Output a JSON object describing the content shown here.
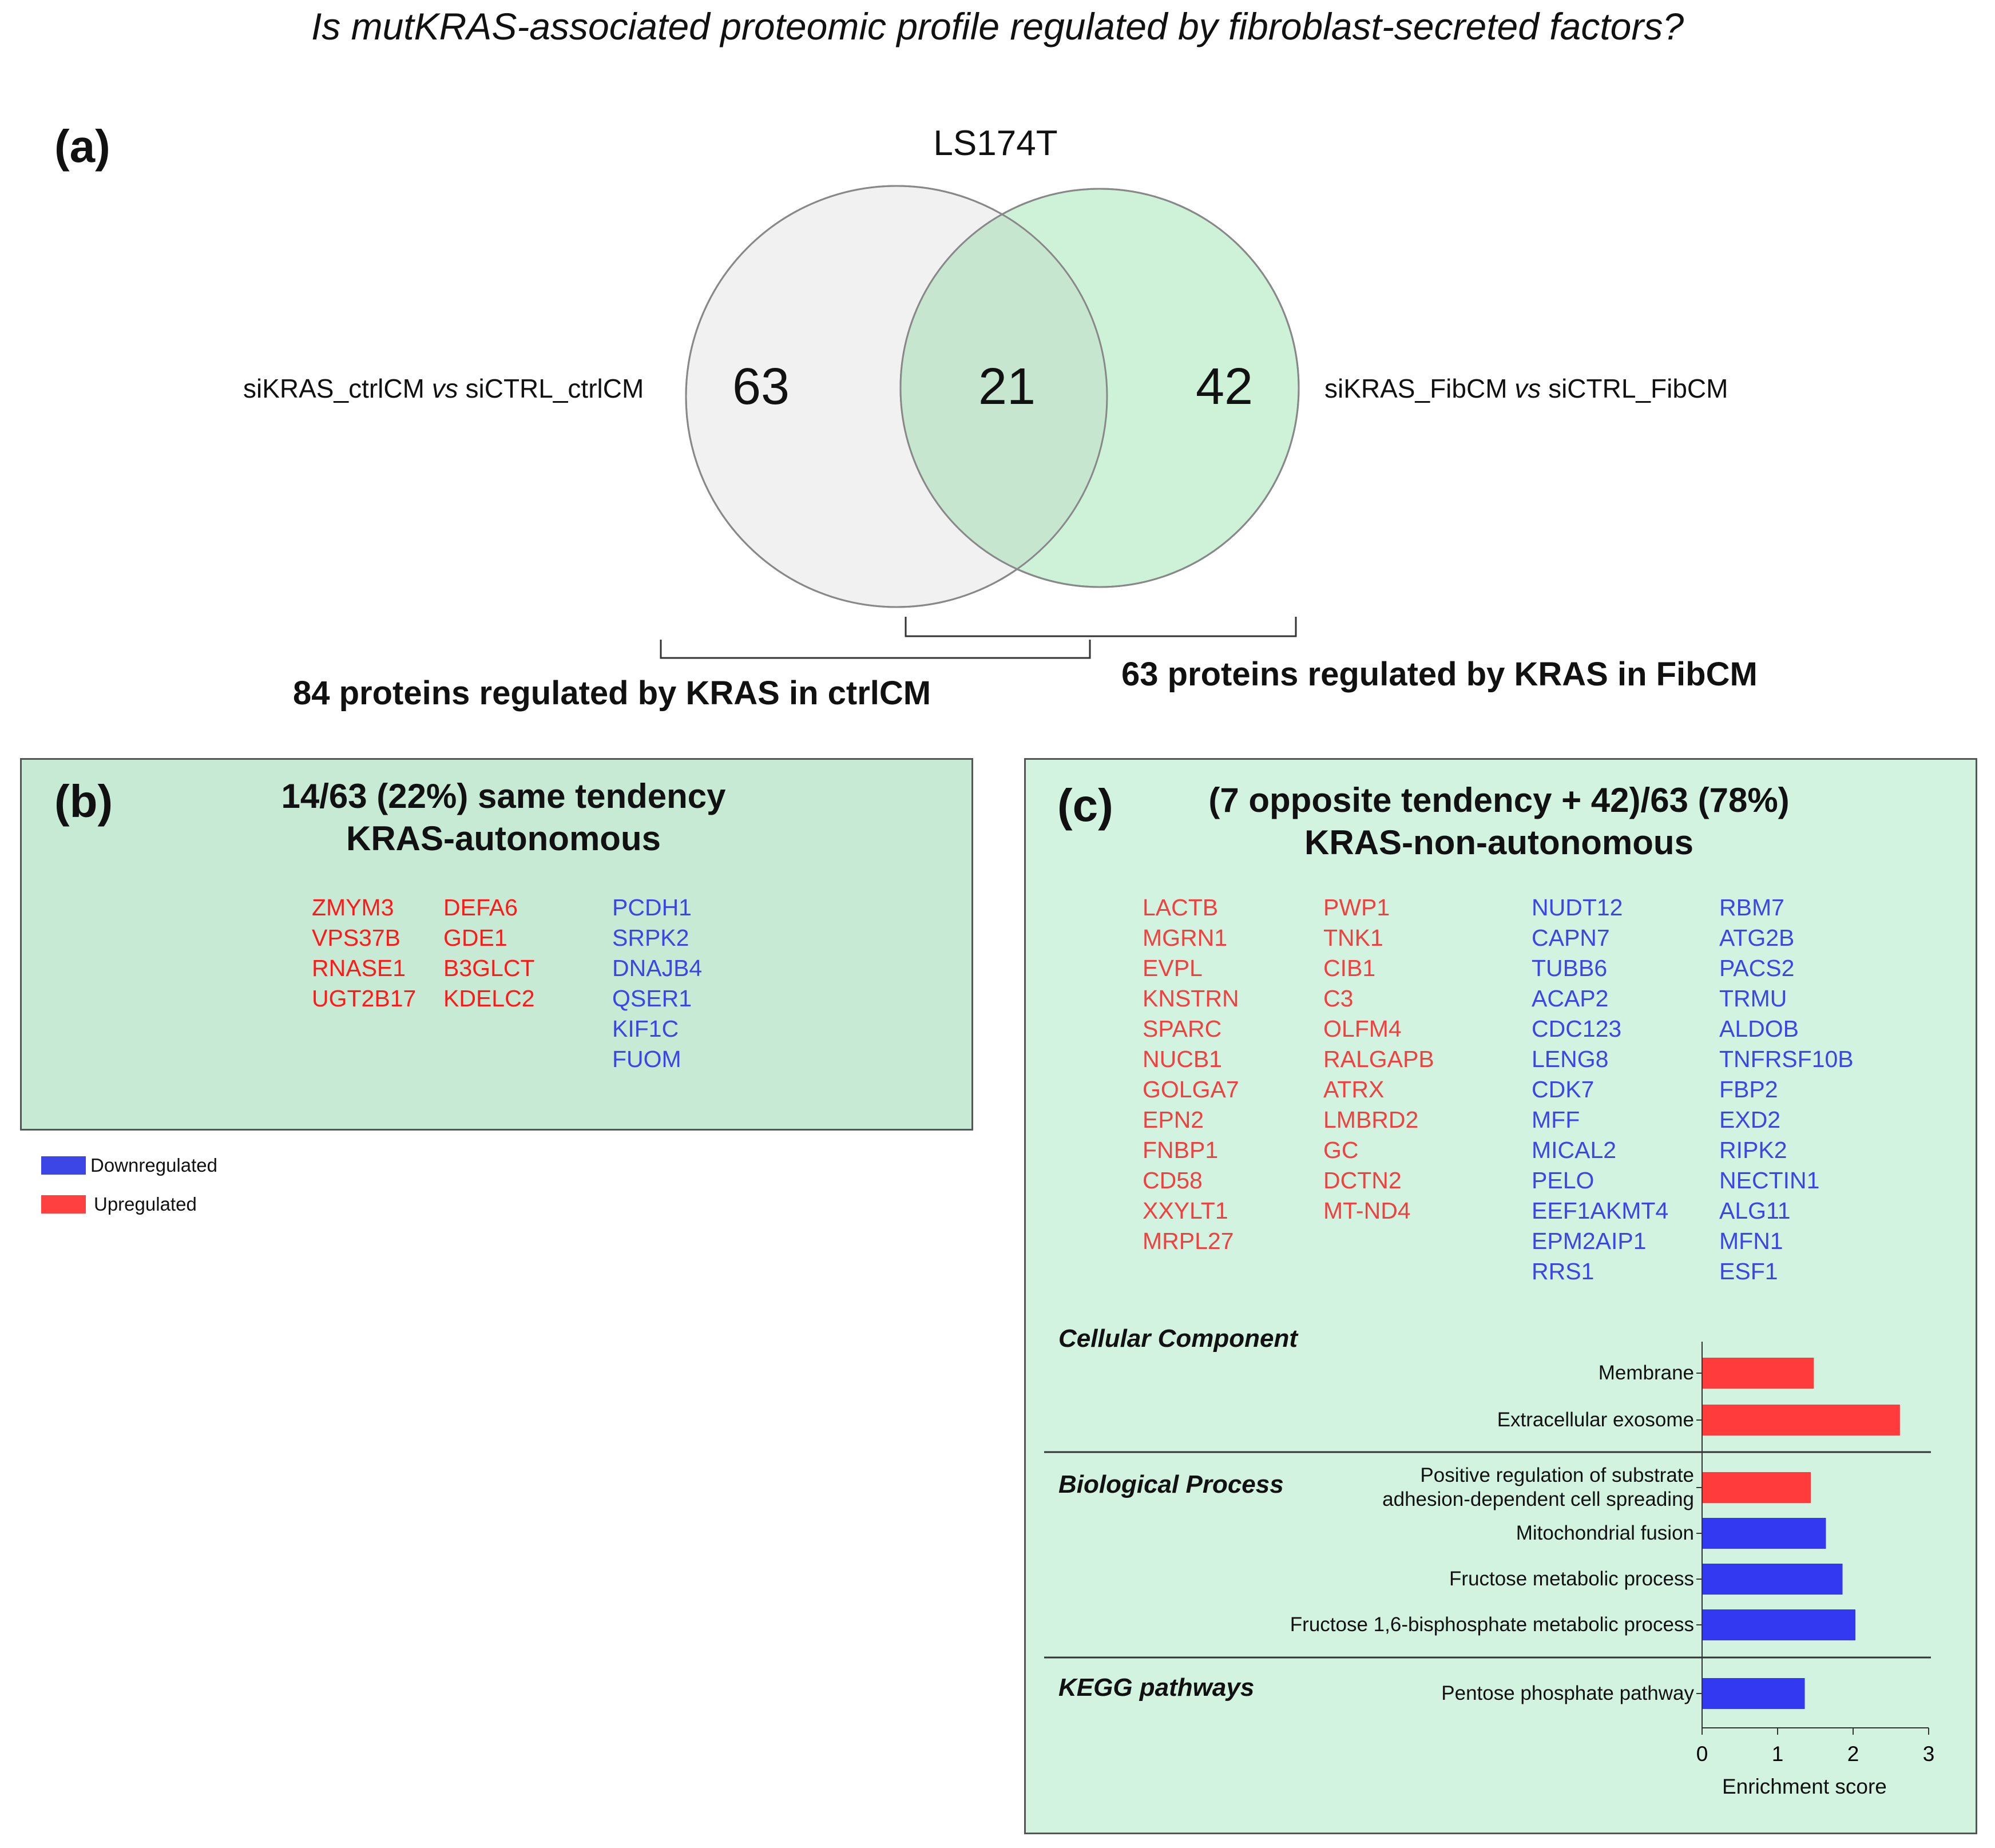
{
  "figure_title": "Is mutKRAS-associated proteomic profile regulated by fibroblast-secreted factors?",
  "panel_a": {
    "label": "(a)",
    "cell_line": "LS174T",
    "left_set_label_pre": "siKRAS_ctrlCM ",
    "left_set_label_vs": "vs",
    "left_set_label_post": " siCTRL_ctrlCM",
    "right_set_label_pre": "siKRAS_FibCM ",
    "right_set_label_vs": "vs",
    "right_set_label_post": " siCTRL_FibCM",
    "left_only": "63",
    "overlap": "21",
    "right_only": "42",
    "left_bracket_label": "84 proteins regulated by KRAS in ctrlCM",
    "right_bracket_label": "63 proteins regulated by KRAS in FibCM",
    "colors": {
      "left_circle": "#f1f1f1",
      "right_circle": "#cdf2d8",
      "overlap": "#c6e6cf"
    }
  },
  "panel_b": {
    "label": "(b)",
    "title_line1": "14/63 (22%)  same tendency",
    "title_line2": "KRAS-autonomous",
    "col1": [
      "ZMYM3",
      "VPS37B",
      "RNASE1",
      "UGT2B17"
    ],
    "col2": [
      "DEFA6",
      "GDE1",
      "B3GLCT",
      "KDELC2"
    ],
    "col3": [
      "PCDH1",
      "SRPK2",
      "DNAJB4",
      "QSER1",
      "KIF1C",
      "FUOM"
    ]
  },
  "legend": {
    "items": [
      {
        "label": "Downregulated",
        "color": "#3c46e6"
      },
      {
        "label": "Upregulated",
        "color": "#ff4040"
      }
    ]
  },
  "panel_c": {
    "label": "(c)",
    "title_line1": "(7 opposite tendency + 42)/63 (78%)",
    "title_line2": "KRAS-non-autonomous",
    "col1": [
      "LACTB",
      "MGRN1",
      "EVPL",
      "KNSTRN",
      "SPARC",
      "NUCB1",
      "GOLGA7",
      "EPN2",
      "FNBP1",
      "CD58",
      "XXYLT1",
      "MRPL27"
    ],
    "col2": [
      "PWP1",
      "TNK1",
      "CIB1",
      "C3",
      "OLFM4",
      "RALGAPB",
      "ATRX",
      "LMBRD2",
      "GC",
      "DCTN2",
      "MT-ND4"
    ],
    "col3": [
      "NUDT12",
      "CAPN7",
      "TUBB6",
      "ACAP2",
      "CDC123",
      "LENG8",
      "CDK7",
      "MFF",
      "MICAL2",
      "PELO",
      "EEF1AKMT4",
      "EPM2AIP1",
      "RRS1"
    ],
    "col4": [
      "RBM7",
      "ATG2B",
      "PACS2",
      "TRMU",
      "ALDOB",
      "TNFRSF10B",
      "FBP2",
      "EXD2",
      "RIPK2",
      "NECTIN1",
      "ALG11",
      "MFN1",
      "ESF1"
    ]
  },
  "chart_data": {
    "type": "bar",
    "orientation": "horizontal",
    "xlabel": "Enrichment score",
    "xlim": [
      0,
      3
    ],
    "xticks": [
      "0",
      "1",
      "2",
      "3"
    ],
    "groups": [
      {
        "name": "Cellular Component",
        "bars": [
          {
            "label": "Membrane",
            "value": 1.48,
            "color": "#ff3b3b"
          },
          {
            "label": "Extracellular exosome",
            "value": 2.62,
            "color": "#ff3b3b"
          }
        ]
      },
      {
        "name": "Biological Process",
        "bars": [
          {
            "label": "Positive regulation of substrate adhesion-dependent cell spreading",
            "line1": "Positive regulation of substrate",
            "line2": "adhesion-dependent cell spreading",
            "value": 1.44,
            "color": "#ff3b3b"
          },
          {
            "label": "Mitochondrial fusion",
            "value": 1.64,
            "color": "#3339f0"
          },
          {
            "label": "Fructose metabolic process",
            "value": 1.86,
            "color": "#3339f0"
          },
          {
            "label": "Fructose 1,6-bisphosphate metabolic process",
            "value": 2.03,
            "color": "#3339f0"
          }
        ]
      },
      {
        "name": "KEGG pathways",
        "bars": [
          {
            "label": "Pentose phosphate pathway",
            "value": 1.36,
            "color": "#3339f0"
          }
        ]
      }
    ]
  }
}
